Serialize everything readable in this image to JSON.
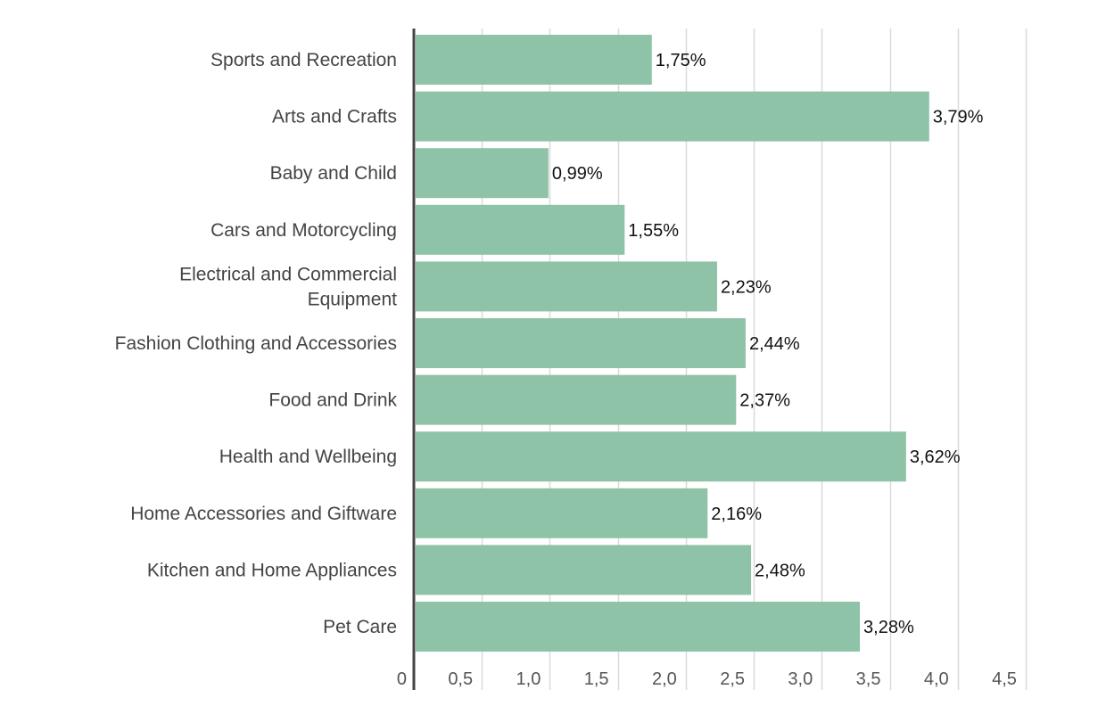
{
  "chart_data": {
    "type": "bar",
    "orientation": "horizontal",
    "categories": [
      "Sports and Recreation",
      "Arts and Crafts",
      "Baby and Child",
      "Cars and Motorcycling",
      "Electrical and Commercial Equipment",
      "Fashion Clothing and Accessories",
      "Food and Drink",
      "Health and Wellbeing",
      "Home Accessories and Giftware",
      "Kitchen and Home Appliances",
      "Pet Care"
    ],
    "values": [
      1.75,
      3.79,
      0.99,
      1.55,
      2.23,
      2.44,
      2.37,
      3.62,
      2.16,
      2.48,
      3.28
    ],
    "value_labels": [
      "1,75%",
      "3,79%",
      "0,99%",
      "1,55%",
      "2,23%",
      "2,44%",
      "2,37%",
      "3,62%",
      "2,16%",
      "2,48%",
      "3,28%"
    ],
    "x_ticks": [
      0,
      0.5,
      1.0,
      1.5,
      2.0,
      2.5,
      3.0,
      3.5,
      4.0,
      4.5
    ],
    "x_tick_labels": [
      "0",
      "0,5",
      "1,0",
      "1,5",
      "2,0",
      "2,5",
      "3,0",
      "3,5",
      "4,0",
      "4,5"
    ],
    "xlim": [
      0,
      4.5
    ],
    "title": "",
    "xlabel": "",
    "ylabel": "",
    "grid": "vertical",
    "legend": "none",
    "colors": {
      "bar": "#8fc3a7",
      "grid": "#d9d9d9",
      "axis": "#444444"
    }
  }
}
